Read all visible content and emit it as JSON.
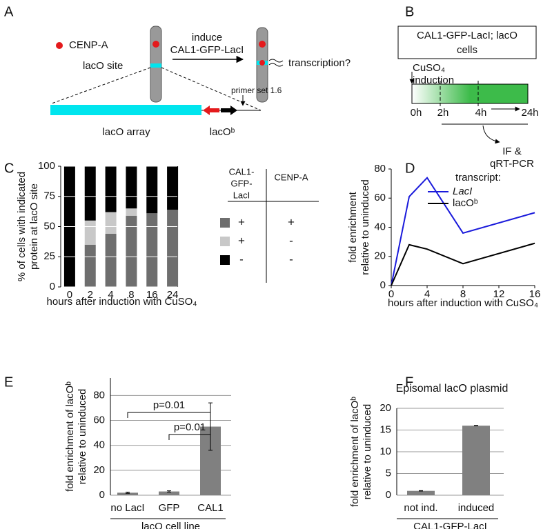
{
  "panel_labels": [
    "A",
    "B",
    "C",
    "D",
    "E",
    "F"
  ],
  "diagram_a": {
    "legend": "CENP-A",
    "site": "lacO site",
    "arrow_top": "induce",
    "arrow_bottom": "CAL1-GFP-LacI",
    "outcome": "transcription?",
    "primer": "primer set 1.6",
    "array": "lacO array",
    "gene": "lacOᵇ"
  },
  "diagram_b": {
    "box": [
      "CAL1-GFP-LacI; lacO",
      "cells"
    ],
    "inducer": [
      "CuSO₄",
      "induction"
    ],
    "times": [
      "0h",
      "2h",
      "4h",
      "24h"
    ],
    "readout": [
      "IF &",
      "qRT-PCR"
    ]
  },
  "chart_data": [
    {
      "type": "stacked_bar",
      "categories": [
        "0",
        "2",
        "4",
        "8",
        "16",
        "24"
      ],
      "series": [
        {
          "color": "#6e6e6e",
          "values": [
            0,
            35,
            44,
            59,
            61,
            64
          ]
        },
        {
          "color": "#c8c8c8",
          "values": [
            0,
            20,
            18,
            6,
            0,
            0
          ]
        },
        {
          "color": "#000000",
          "values": [
            100,
            45,
            38,
            35,
            39,
            36
          ]
        }
      ],
      "ylim": [
        0,
        100
      ],
      "yticks": [
        0,
        25,
        50,
        75,
        100
      ],
      "grid": true,
      "ylabel": [
        "% of cells with indicated",
        "protein at lacO site"
      ],
      "xlabel": "hours after induction with CuSO₄",
      "legend_table": {
        "headers": [
          [
            "CAL1-",
            "GFP-",
            "LacI"
          ],
          [
            "CENP-A"
          ]
        ],
        "rows": [
          [
            "+",
            "+"
          ],
          [
            "+",
            "-"
          ],
          [
            "-",
            "-"
          ]
        ]
      }
    },
    {
      "type": "line",
      "x": [
        0,
        2,
        4,
        8,
        16
      ],
      "series": [
        {
          "name": "LacI",
          "color": "#1a1adb",
          "values": [
            0,
            61,
            74,
            36,
            50
          ]
        },
        {
          "name": "lacOᵇ",
          "color": "#000000",
          "values": [
            0,
            28,
            25,
            15,
            29
          ]
        }
      ],
      "xlim": [
        0,
        16
      ],
      "xticks": [
        0,
        4,
        8,
        12,
        16
      ],
      "ylim": [
        0,
        80
      ],
      "yticks": [
        0,
        20,
        40,
        60,
        80
      ],
      "legend_title": "transcript:",
      "ylabel": [
        "fold enrichment",
        "relative to uninduced"
      ],
      "xlabel": "hours after induction with CuSO₄"
    },
    {
      "type": "bar",
      "categories": [
        "no LacI",
        "GFP",
        "CAL1"
      ],
      "values": [
        2,
        3,
        55
      ],
      "errors": [
        0.5,
        0.5,
        19
      ],
      "color": "#808080",
      "ylim": [
        0,
        94
      ],
      "yticks": [
        0,
        20,
        40,
        60,
        80
      ],
      "grid": true,
      "annotations": [
        "p=0.01",
        "p=0.01"
      ],
      "ylabel": [
        "fold enrichment of lacOᵇ",
        "relative to uninduced"
      ],
      "xlabel": "lacO cell line"
    },
    {
      "type": "bar",
      "title": "Episomal lacO plasmid",
      "categories": [
        "not ind.",
        "induced"
      ],
      "values": [
        1,
        16
      ],
      "errors": [
        0.05,
        0.05
      ],
      "color": "#808080",
      "ylim": [
        0,
        20
      ],
      "yticks": [
        0,
        5,
        10,
        15,
        20
      ],
      "grid": true,
      "ylabel": [
        "fold enrichment of lacOᵇ",
        "relative to uninduced"
      ],
      "xlabel": "CAL1-GFP-LacI"
    }
  ]
}
